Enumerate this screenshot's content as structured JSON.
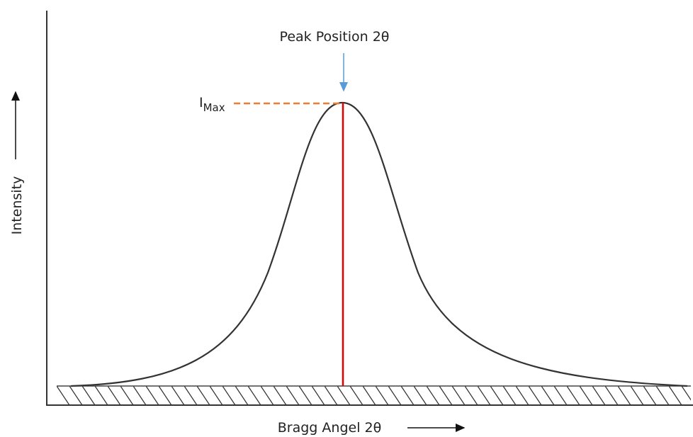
{
  "labels": {
    "peak_position": "Peak Position 2θ",
    "i_max": "I",
    "i_max_sub": "Max",
    "y_axis": "Intensity",
    "x_axis": "Bragg Angel 2θ"
  }
}
